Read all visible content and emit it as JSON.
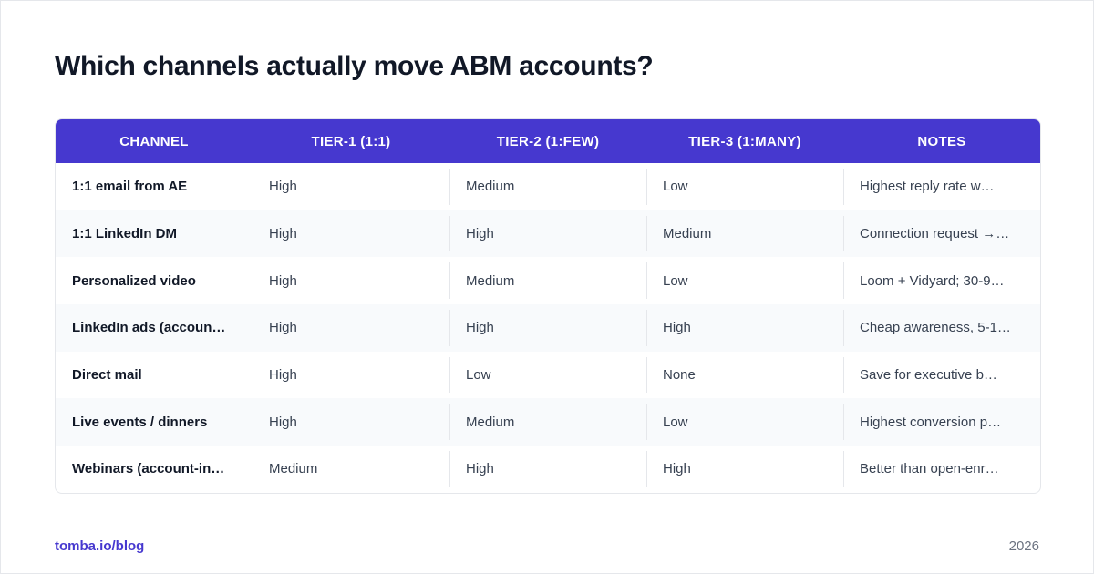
{
  "header": {
    "title": "Which channels actually move ABM accounts?"
  },
  "table": {
    "columns": [
      "CHANNEL",
      "TIER-1 (1:1)",
      "TIER-2 (1:FEW)",
      "TIER-3 (1:MANY)",
      "NOTES"
    ],
    "rows": [
      [
        "1:1 email from AE",
        "High",
        "Medium",
        "Low",
        "Highest reply rate w…"
      ],
      [
        "1:1 LinkedIn DM",
        "High",
        "High",
        "Medium",
        "Connection request →…"
      ],
      [
        "Personalized video",
        "High",
        "Medium",
        "Low",
        "Loom + Vidyard; 30-9…"
      ],
      [
        "LinkedIn ads (accoun…",
        "High",
        "High",
        "High",
        "Cheap awareness, 5-1…"
      ],
      [
        "Direct mail",
        "High",
        "Low",
        "None",
        "Save for executive b…"
      ],
      [
        "Live events / dinners",
        "High",
        "Medium",
        "Low",
        "Highest conversion p…"
      ],
      [
        "Webinars (account-in…",
        "Medium",
        "High",
        "High",
        "Better than open-enr…"
      ]
    ]
  },
  "footer": {
    "source": "tomba.io/blog",
    "year": "2026"
  }
}
